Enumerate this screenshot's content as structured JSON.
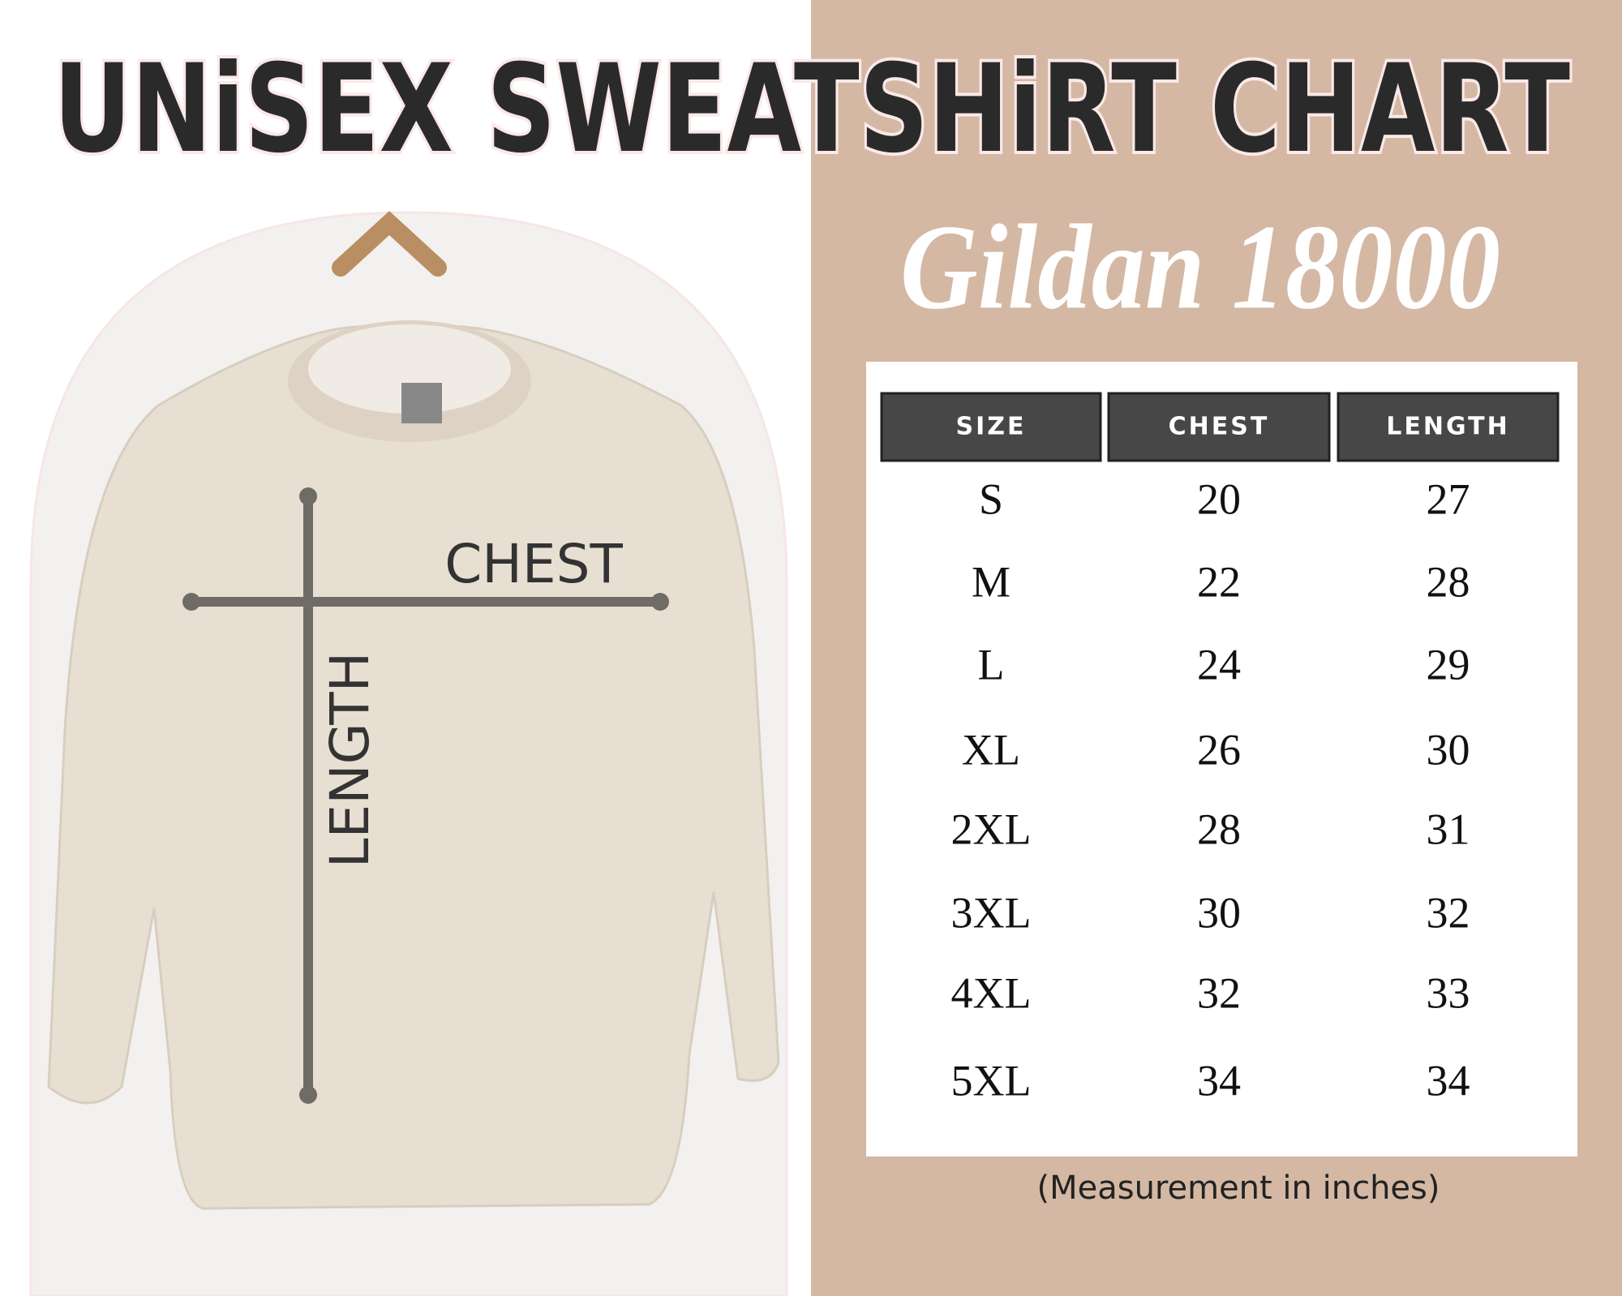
{
  "title": "UNiSEX SWEATSHiRT CHART",
  "subtitle": "Gildan 18000",
  "illustration": {
    "chest_label": "CHEST",
    "length_label": "LENGTH"
  },
  "table": {
    "headers": [
      "SIZE",
      "CHEST",
      "LENGTH"
    ],
    "rows": [
      [
        "S",
        20,
        27
      ],
      [
        "M",
        22,
        28
      ],
      [
        "L",
        24,
        29
      ],
      [
        "XL",
        26,
        30
      ],
      [
        "2XL",
        28,
        31
      ],
      [
        "3XL",
        30,
        32
      ],
      [
        "4XL",
        32,
        33
      ],
      [
        "5XL",
        34,
        34
      ]
    ]
  },
  "note": "(Measurement in inches)"
}
